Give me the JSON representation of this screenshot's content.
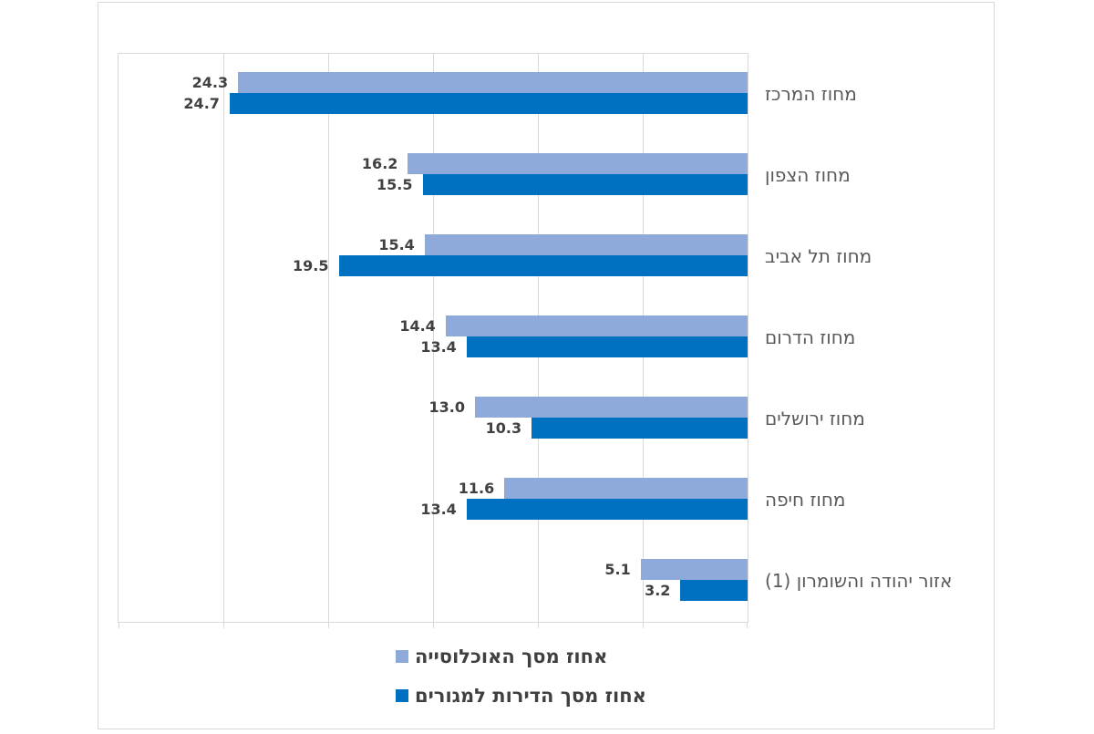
{
  "colors": {
    "grid": "#d9d9d9",
    "value_label": "#404040",
    "category_label": "#595959",
    "legend_text": "#404040"
  },
  "chart_data": {
    "type": "bar",
    "orientation": "horizontal",
    "rtl": true,
    "title": "",
    "xlabel": "",
    "ylabel": "",
    "categories": [
      "מחוז המרכז",
      "מחוז הצפון",
      "מחוז תל אביב",
      "מחוז הדרום",
      "מחוז ירושלים",
      "מחוז חיפה",
      "אזור יהודה והשומרון (1)"
    ],
    "series": [
      {
        "key": "population",
        "name": "אחוז מסך האוכלוסייה",
        "color": "#8EAADB",
        "values": [
          24.3,
          16.2,
          15.4,
          14.4,
          13.0,
          11.6,
          5.1
        ]
      },
      {
        "key": "dwellings",
        "name": "אחוז מסך הדירות למגורים",
        "color": "#0070C0",
        "values": [
          24.7,
          15.5,
          19.5,
          13.4,
          10.3,
          13.4,
          3.2
        ]
      }
    ],
    "xlim": [
      0,
      30
    ],
    "gridline_step": 5,
    "grid": true,
    "axis_tick_labels_visible": false,
    "value_labels": true,
    "value_label_format": "0.0",
    "legend_position": "bottom"
  }
}
